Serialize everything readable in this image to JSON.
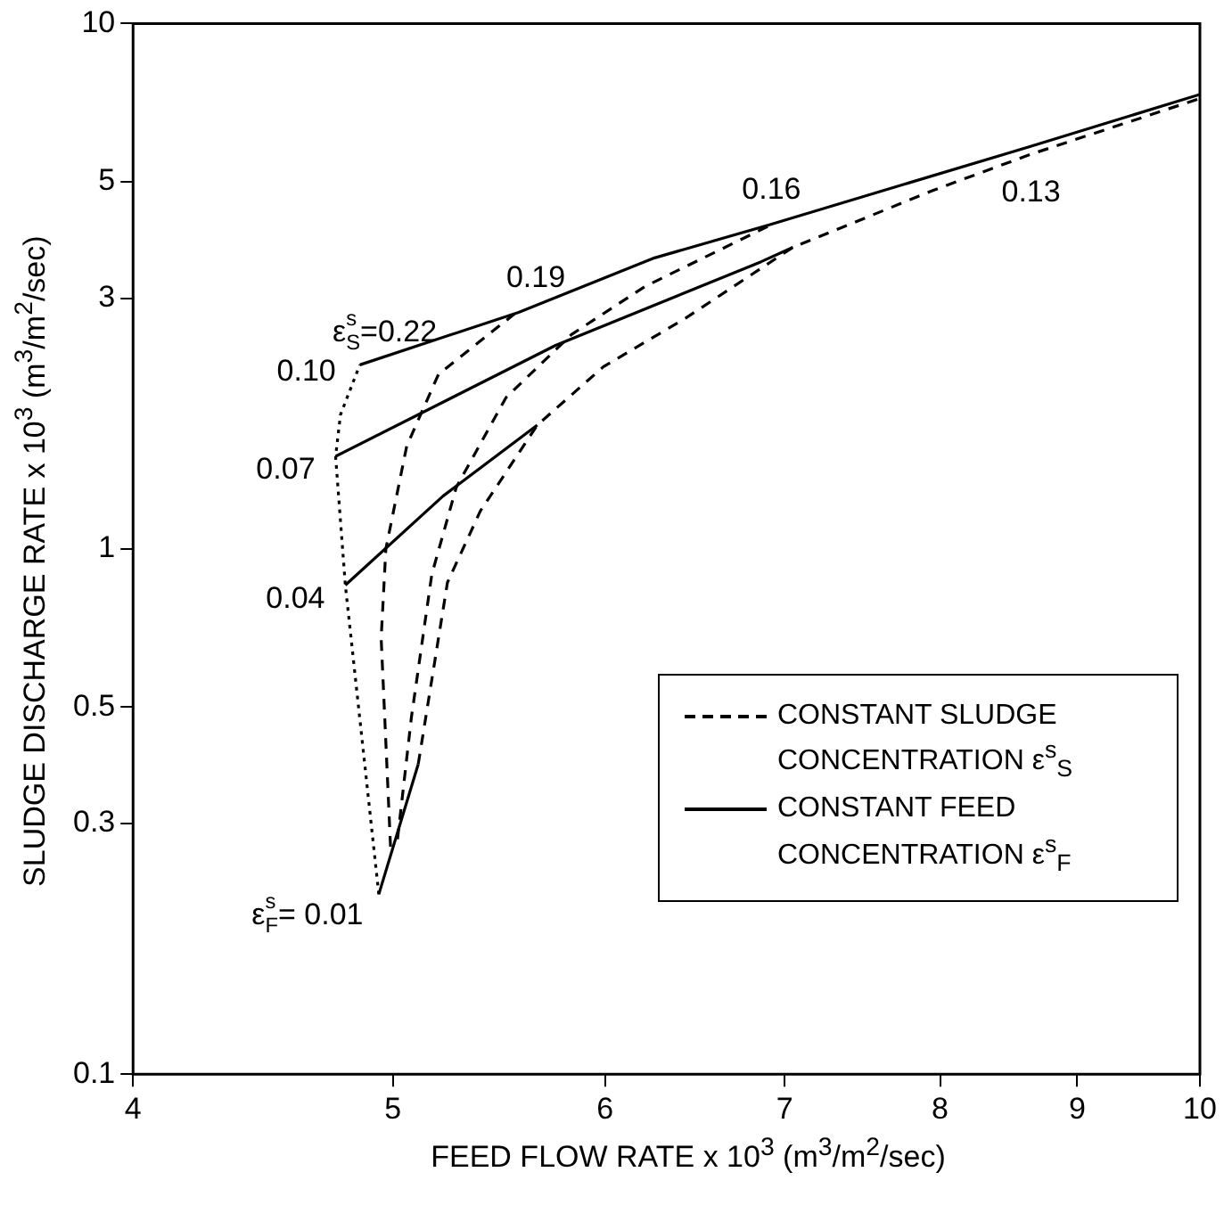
{
  "chart_data": {
    "type": "line",
    "xlabel": "FEED FLOW RATE x 10$^{3}$ (m$^{3}$/m$^{2}$/sec)",
    "ylabel": "SLUDGE DISCHARGE RATE x 10$^{3}$ (m$^{3}$/m$^{2}$/sec)",
    "log": "xy",
    "xlim": [
      4,
      10
    ],
    "xticks": [
      4,
      5,
      6,
      7,
      8,
      9,
      10
    ],
    "ylim": [
      0.1,
      10
    ],
    "yticks": [
      0.1,
      0.3,
      0.5,
      1,
      3,
      5,
      10
    ],
    "grid": false,
    "marker": "none",
    "series": [
      {
        "name": "0.19",
        "color": "#000000",
        "line_style": "dashed",
        "x": [
          4.99,
          4.95,
          4.97,
          5.06,
          5.2,
          5.55
        ],
        "values": [
          0.271,
          0.676,
          1.0,
          1.57,
          2.15,
          2.8
        ]
      },
      {
        "name": "ε$^{s}$$_{S}$=0.22",
        "color": "#000000",
        "line_style": "dotted",
        "x": [
          4.94,
          4.8,
          4.76,
          4.78,
          4.86
        ],
        "values": [
          0.22,
          0.853,
          1.5,
          1.8,
          2.24
        ]
      },
      {
        "name": "0.16",
        "color": "#000000",
        "line_style": "dashed",
        "x": [
          5.02,
          5.08,
          5.17,
          5.28,
          5.51,
          5.83,
          6.21,
          6.9
        ],
        "values": [
          0.28,
          0.477,
          0.894,
          1.31,
          1.94,
          2.56,
          3.16,
          4.11
        ]
      },
      {
        "name": "0.13",
        "color": "#000000",
        "line_style": "dashed",
        "x": [
          5.11,
          5.24,
          5.39,
          5.66,
          5.99,
          6.43,
          7.05,
          7.95,
          8.65,
          10
        ],
        "values": [
          0.389,
          0.863,
          1.18,
          1.72,
          2.22,
          2.75,
          3.75,
          4.81,
          5.64,
          7.2
        ]
      },
      {
        "name": "0.10",
        "color": "#000000",
        "line_style": "solid",
        "x": [
          4.86,
          5.57,
          6.26,
          6.9,
          8.63,
          10
        ],
        "values": [
          2.24,
          2.82,
          3.58,
          4.13,
          5.82,
          7.33
        ]
      },
      {
        "name": "0.07",
        "color": "#000000",
        "line_style": "solid",
        "x": [
          4.76,
          5.75,
          6.86,
          7.05
        ],
        "values": [
          1.5,
          2.44,
          3.52,
          3.75
        ]
      },
      {
        "name": "0.04",
        "color": "#000000",
        "line_style": "solid",
        "x": [
          4.8,
          5.22,
          5.66
        ],
        "values": [
          0.853,
          1.26,
          1.72
        ]
      },
      {
        "name": "ε$^{s}$$_{F}$= 0.01",
        "color": "#000000",
        "line_style": "solid",
        "x": [
          4.94,
          5.11
        ],
        "values": [
          0.22,
          0.389
        ]
      }
    ],
    "annotations": [
      "CONSTANT SLUDGE CONCENTRATION ε$^{s}$$_{S}$",
      "CONSTANT FEED CONCENTRATION ε$^{s}$$_{F}$"
    ]
  }
}
